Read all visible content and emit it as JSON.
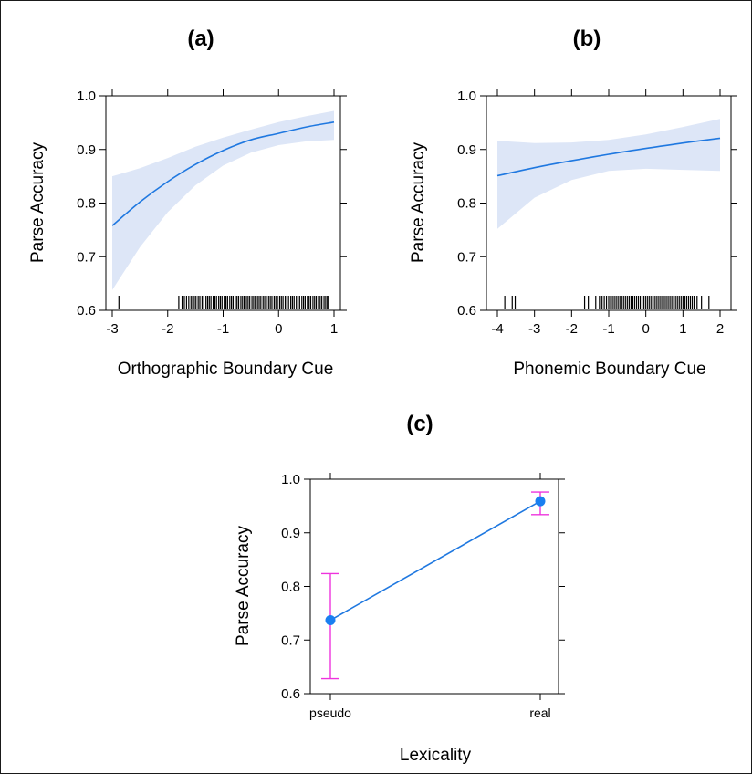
{
  "colors": {
    "line": "#1f78e0",
    "ribbon": "#dde6f7",
    "errorbar": "#ee33dd",
    "point": "#1a7ff0",
    "axis": "#000000"
  },
  "chart_data": [
    {
      "id": "a",
      "type": "line",
      "title": "(a)",
      "xlabel": "Orthographic Boundary Cue",
      "ylabel": "Parse Accuracy",
      "xlim": [
        -3.0,
        1.0
      ],
      "ylim": [
        0.6,
        1.0
      ],
      "xticks": [
        "-3",
        "-2",
        "-1",
        "0",
        "1"
      ],
      "yticks": [
        "0.6",
        "0.7",
        "0.8",
        "0.9",
        "1.0"
      ],
      "x": [
        -3.0,
        -2.5,
        -2.0,
        -1.5,
        -1.0,
        -0.5,
        0.0,
        0.5,
        1.0
      ],
      "y": [
        0.758,
        0.802,
        0.84,
        0.872,
        0.898,
        0.918,
        0.93,
        0.942,
        0.951
      ],
      "ci_lower": [
        0.638,
        0.718,
        0.783,
        0.833,
        0.87,
        0.894,
        0.908,
        0.915,
        0.918
      ],
      "ci_upper": [
        0.85,
        0.865,
        0.884,
        0.905,
        0.922,
        0.937,
        0.951,
        0.962,
        0.972
      ],
      "rug": [
        -2.88,
        -1.8,
        -1.74,
        -1.7,
        -1.66,
        -1.62,
        -1.58,
        -1.55,
        -1.52,
        -1.49,
        -1.45,
        -1.42,
        -1.38,
        -1.35,
        -1.31,
        -1.28,
        -1.25,
        -1.22,
        -1.18,
        -1.15,
        -1.12,
        -1.08,
        -1.05,
        -1.02,
        -0.98,
        -0.95,
        -0.92,
        -0.88,
        -0.85,
        -0.82,
        -0.78,
        -0.75,
        -0.72,
        -0.68,
        -0.65,
        -0.62,
        -0.58,
        -0.55,
        -0.52,
        -0.48,
        -0.45,
        -0.42,
        -0.38,
        -0.35,
        -0.32,
        -0.28,
        -0.25,
        -0.22,
        -0.18,
        -0.15,
        -0.12,
        -0.08,
        -0.05,
        -0.02,
        0.02,
        0.05,
        0.08,
        0.12,
        0.15,
        0.18,
        0.22,
        0.25,
        0.28,
        0.32,
        0.35,
        0.38,
        0.42,
        0.45,
        0.48,
        0.52,
        0.55,
        0.58,
        0.62,
        0.65,
        0.68,
        0.72,
        0.75,
        0.78,
        0.82,
        0.85,
        0.88,
        0.9
      ]
    },
    {
      "id": "b",
      "type": "line",
      "title": "(b)",
      "xlabel": "Phonemic Boundary Cue",
      "ylabel": "Parse Accuracy",
      "xlim": [
        -4.0,
        2.0
      ],
      "ylim": [
        0.6,
        1.0
      ],
      "xticks": [
        "-4",
        "-3",
        "-2",
        "-1",
        "0",
        "1",
        "2"
      ],
      "yticks": [
        "0.6",
        "0.7",
        "0.8",
        "0.9",
        "1.0"
      ],
      "x": [
        -4.0,
        -3.0,
        -2.0,
        -1.0,
        0.0,
        1.0,
        2.0
      ],
      "y": [
        0.851,
        0.866,
        0.879,
        0.891,
        0.902,
        0.912,
        0.921
      ],
      "ci_lower": [
        0.752,
        0.81,
        0.843,
        0.86,
        0.864,
        0.862,
        0.86
      ],
      "ci_upper": [
        0.916,
        0.912,
        0.913,
        0.918,
        0.928,
        0.942,
        0.957
      ],
      "rug": [
        -3.8,
        -3.6,
        -3.52,
        -1.65,
        -1.55,
        -1.35,
        -1.25,
        -1.18,
        -1.12,
        -1.06,
        -1.0,
        -0.95,
        -0.9,
        -0.85,
        -0.8,
        -0.75,
        -0.7,
        -0.65,
        -0.6,
        -0.55,
        -0.5,
        -0.45,
        -0.4,
        -0.35,
        -0.3,
        -0.25,
        -0.2,
        -0.15,
        -0.1,
        -0.05,
        0.0,
        0.05,
        0.1,
        0.15,
        0.2,
        0.25,
        0.3,
        0.35,
        0.4,
        0.45,
        0.5,
        0.55,
        0.6,
        0.65,
        0.7,
        0.75,
        0.8,
        0.85,
        0.9,
        0.95,
        1.0,
        1.05,
        1.1,
        1.15,
        1.2,
        1.25,
        1.3,
        1.38,
        1.5,
        1.7
      ]
    },
    {
      "id": "c",
      "type": "scatter",
      "title": "(c)",
      "xlabel": "Lexicality",
      "ylabel": "Parse Accuracy",
      "categories": [
        "pseudo",
        "real"
      ],
      "yticks": [
        "0.6",
        "0.7",
        "0.8",
        "0.9",
        "1.0"
      ],
      "ylim": [
        0.6,
        1.0
      ],
      "values": [
        0.737,
        0.959
      ],
      "ci_lower": [
        0.628,
        0.934
      ],
      "ci_upper": [
        0.824,
        0.976
      ]
    }
  ]
}
